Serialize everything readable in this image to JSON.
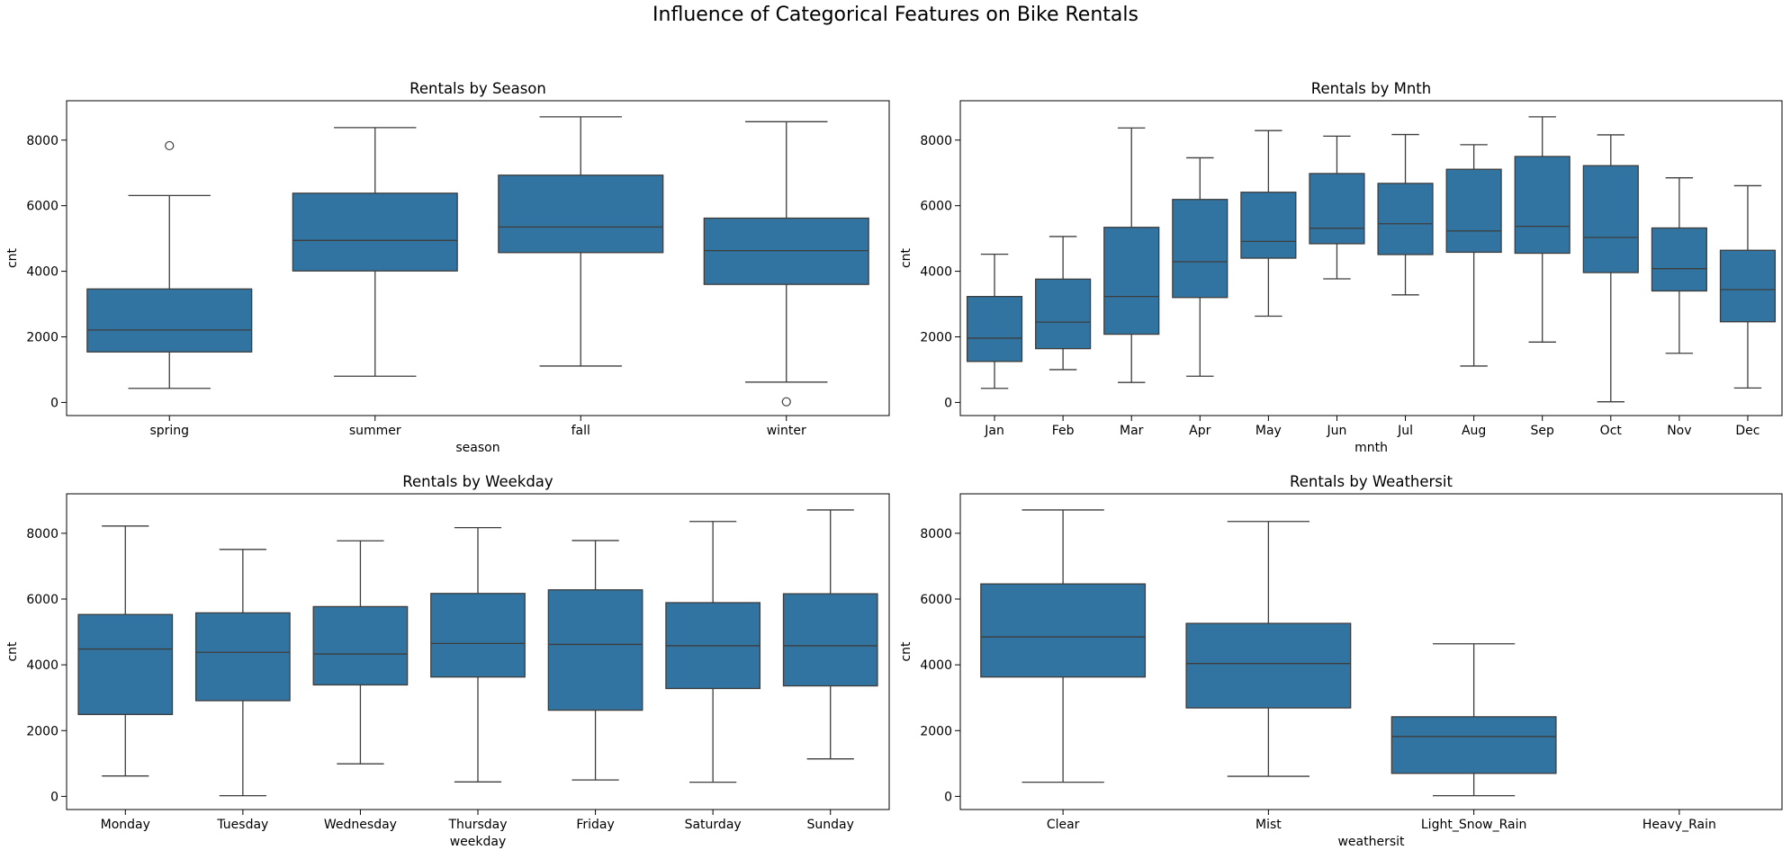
{
  "figure": {
    "title": "Influence of Categorical Features on Bike Rentals",
    "colors": {
      "box": "#3274a1",
      "line": "#3d3d3d",
      "frame": "#000000"
    }
  },
  "chart_data": [
    {
      "type": "box",
      "title": "Rentals by Season",
      "xlabel": "season",
      "ylabel": "cnt",
      "ylim": [
        -400,
        9200
      ],
      "yticks": [
        0,
        2000,
        4000,
        6000,
        8000
      ],
      "categories": [
        "spring",
        "summer",
        "fall",
        "winter"
      ],
      "boxes": [
        {
          "whislo": 430,
          "q1": 1540,
          "med": 2210,
          "q3": 3460,
          "whishi": 6310,
          "fliers": [
            7830
          ]
        },
        {
          "whislo": 800,
          "q1": 4010,
          "med": 4940,
          "q3": 6380,
          "whishi": 8380,
          "fliers": []
        },
        {
          "whislo": 1110,
          "q1": 4570,
          "med": 5350,
          "q3": 6930,
          "whishi": 8710,
          "fliers": []
        },
        {
          "whislo": 620,
          "q1": 3600,
          "med": 4630,
          "q3": 5620,
          "whishi": 8560,
          "fliers": [
            20
          ]
        }
      ]
    },
    {
      "type": "box",
      "title": "Rentals by Mnth",
      "xlabel": "mnth",
      "ylabel": "cnt",
      "ylim": [
        -400,
        9200
      ],
      "yticks": [
        0,
        2000,
        4000,
        6000,
        8000
      ],
      "categories": [
        "Jan",
        "Feb",
        "Mar",
        "Apr",
        "May",
        "Jun",
        "Jul",
        "Aug",
        "Sep",
        "Oct",
        "Nov",
        "Dec"
      ],
      "boxes": [
        {
          "whislo": 430,
          "q1": 1250,
          "med": 1960,
          "q3": 3230,
          "whishi": 4520,
          "fliers": []
        },
        {
          "whislo": 1000,
          "q1": 1640,
          "med": 2450,
          "q3": 3760,
          "whishi": 5060,
          "fliers": []
        },
        {
          "whislo": 610,
          "q1": 2080,
          "med": 3230,
          "q3": 5340,
          "whishi": 8370,
          "fliers": []
        },
        {
          "whislo": 800,
          "q1": 3200,
          "med": 4290,
          "q3": 6190,
          "whishi": 7460,
          "fliers": []
        },
        {
          "whislo": 2630,
          "q1": 4400,
          "med": 4910,
          "q3": 6410,
          "whishi": 8290,
          "fliers": []
        },
        {
          "whislo": 3770,
          "q1": 4840,
          "med": 5310,
          "q3": 6980,
          "whishi": 8120,
          "fliers": []
        },
        {
          "whislo": 3280,
          "q1": 4510,
          "med": 5450,
          "q3": 6680,
          "whishi": 8170,
          "fliers": []
        },
        {
          "whislo": 1110,
          "q1": 4580,
          "med": 5230,
          "q3": 7110,
          "whishi": 7860,
          "fliers": []
        },
        {
          "whislo": 1840,
          "q1": 4550,
          "med": 5370,
          "q3": 7500,
          "whishi": 8710,
          "fliers": []
        },
        {
          "whislo": 20,
          "q1": 3960,
          "med": 5030,
          "q3": 7220,
          "whishi": 8160,
          "fliers": []
        },
        {
          "whislo": 1500,
          "q1": 3400,
          "med": 4080,
          "q3": 5320,
          "whishi": 6850,
          "fliers": []
        },
        {
          "whislo": 440,
          "q1": 2460,
          "med": 3440,
          "q3": 4640,
          "whishi": 6610,
          "fliers": []
        }
      ]
    },
    {
      "type": "box",
      "title": "Rentals by Weekday",
      "xlabel": "weekday",
      "ylabel": "cnt",
      "ylim": [
        -400,
        9200
      ],
      "yticks": [
        0,
        2000,
        4000,
        6000,
        8000
      ],
      "categories": [
        "Monday",
        "Tuesday",
        "Wednesday",
        "Thursday",
        "Friday",
        "Saturday",
        "Sunday"
      ],
      "boxes": [
        {
          "whislo": 620,
          "q1": 2490,
          "med": 4480,
          "q3": 5530,
          "whishi": 8220,
          "fliers": []
        },
        {
          "whislo": 20,
          "q1": 2910,
          "med": 4380,
          "q3": 5580,
          "whishi": 7510,
          "fliers": []
        },
        {
          "whislo": 990,
          "q1": 3390,
          "med": 4330,
          "q3": 5770,
          "whishi": 7770,
          "fliers": []
        },
        {
          "whislo": 440,
          "q1": 3630,
          "med": 4650,
          "q3": 6170,
          "whishi": 8170,
          "fliers": []
        },
        {
          "whislo": 500,
          "q1": 2620,
          "med": 4620,
          "q3": 6280,
          "whishi": 7780,
          "fliers": []
        },
        {
          "whislo": 430,
          "q1": 3280,
          "med": 4580,
          "q3": 5890,
          "whishi": 8360,
          "fliers": []
        },
        {
          "whislo": 1140,
          "q1": 3360,
          "med": 4580,
          "q3": 6160,
          "whishi": 8710,
          "fliers": []
        }
      ]
    },
    {
      "type": "box",
      "title": "Rentals by Weathersit",
      "xlabel": "weathersit",
      "ylabel": "cnt",
      "ylim": [
        -400,
        9200
      ],
      "yticks": [
        0,
        2000,
        4000,
        6000,
        8000
      ],
      "categories": [
        "Clear",
        "Mist",
        "Light_Snow_Rain",
        "Heavy_Rain"
      ],
      "boxes": [
        {
          "whislo": 430,
          "q1": 3630,
          "med": 4850,
          "q3": 6460,
          "whishi": 8710,
          "fliers": []
        },
        {
          "whislo": 610,
          "q1": 2690,
          "med": 4040,
          "q3": 5260,
          "whishi": 8360,
          "fliers": []
        },
        {
          "whislo": 20,
          "q1": 700,
          "med": 1820,
          "q3": 2420,
          "whishi": 4640,
          "fliers": []
        },
        null
      ]
    }
  ]
}
